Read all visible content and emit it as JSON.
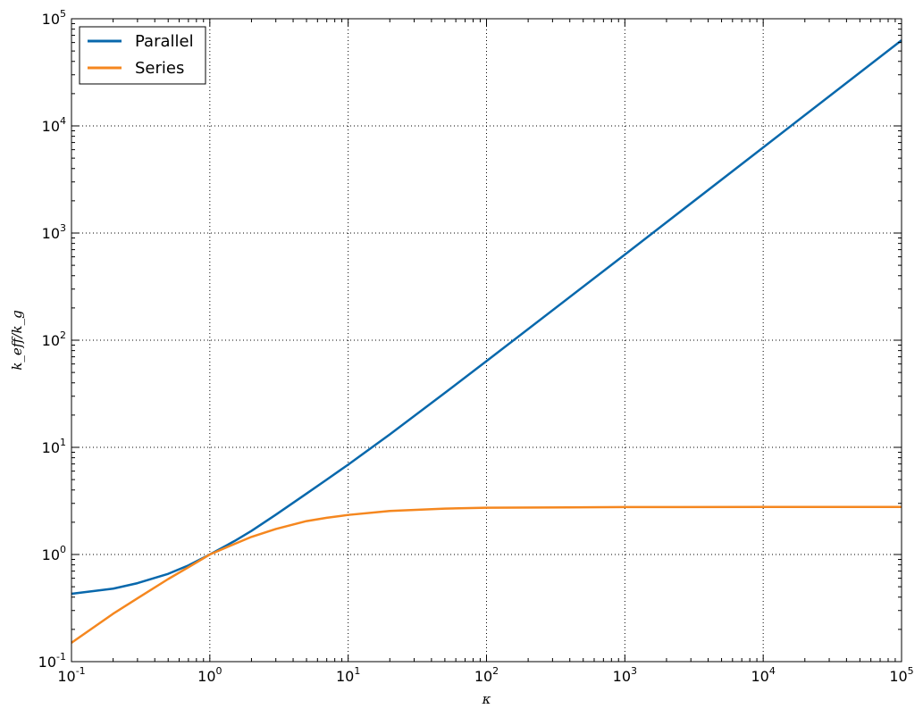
{
  "chart_data": {
    "type": "line",
    "title": "",
    "xlabel": "κ",
    "ylabel": "k_eff/k_g",
    "xscale": "log",
    "yscale": "log",
    "xlim": [
      0.1,
      100000
    ],
    "ylim": [
      0.1,
      100000
    ],
    "grid": true,
    "legend_position": "top-left",
    "x_ticks": [
      {
        "base": "10",
        "exp": "-1"
      },
      {
        "base": "10",
        "exp": "0"
      },
      {
        "base": "10",
        "exp": "1"
      },
      {
        "base": "10",
        "exp": "2"
      },
      {
        "base": "10",
        "exp": "3"
      },
      {
        "base": "10",
        "exp": "4"
      },
      {
        "base": "10",
        "exp": "5"
      }
    ],
    "y_ticks": [
      {
        "base": "10",
        "exp": "-1"
      },
      {
        "base": "10",
        "exp": "0"
      },
      {
        "base": "10",
        "exp": "1"
      },
      {
        "base": "10",
        "exp": "2"
      },
      {
        "base": "10",
        "exp": "3"
      },
      {
        "base": "10",
        "exp": "4"
      },
      {
        "base": "10",
        "exp": "5"
      }
    ],
    "series": [
      {
        "name": "Parallel",
        "color": "#0868ac",
        "x": [
          0.1,
          0.2,
          0.3,
          0.5,
          0.7,
          1,
          1.5,
          2,
          3,
          5,
          7,
          10,
          20,
          50,
          100,
          1000,
          10000,
          100000
        ],
        "y": [
          0.43,
          0.48,
          0.54,
          0.66,
          0.79,
          1.0,
          1.33,
          1.66,
          2.35,
          3.7,
          5.0,
          6.9,
          13.2,
          32.2,
          63.8,
          630,
          6300,
          63000
        ]
      },
      {
        "name": "Series",
        "color": "#f5871f",
        "x": [
          0.1,
          0.2,
          0.3,
          0.5,
          0.7,
          1,
          1.5,
          2,
          3,
          5,
          7,
          10,
          20,
          50,
          100,
          1000,
          10000,
          100000
        ],
        "y": [
          0.15,
          0.28,
          0.39,
          0.59,
          0.76,
          1.0,
          1.25,
          1.46,
          1.73,
          2.05,
          2.2,
          2.34,
          2.55,
          2.68,
          2.73,
          2.77,
          2.78,
          2.78
        ]
      }
    ]
  }
}
